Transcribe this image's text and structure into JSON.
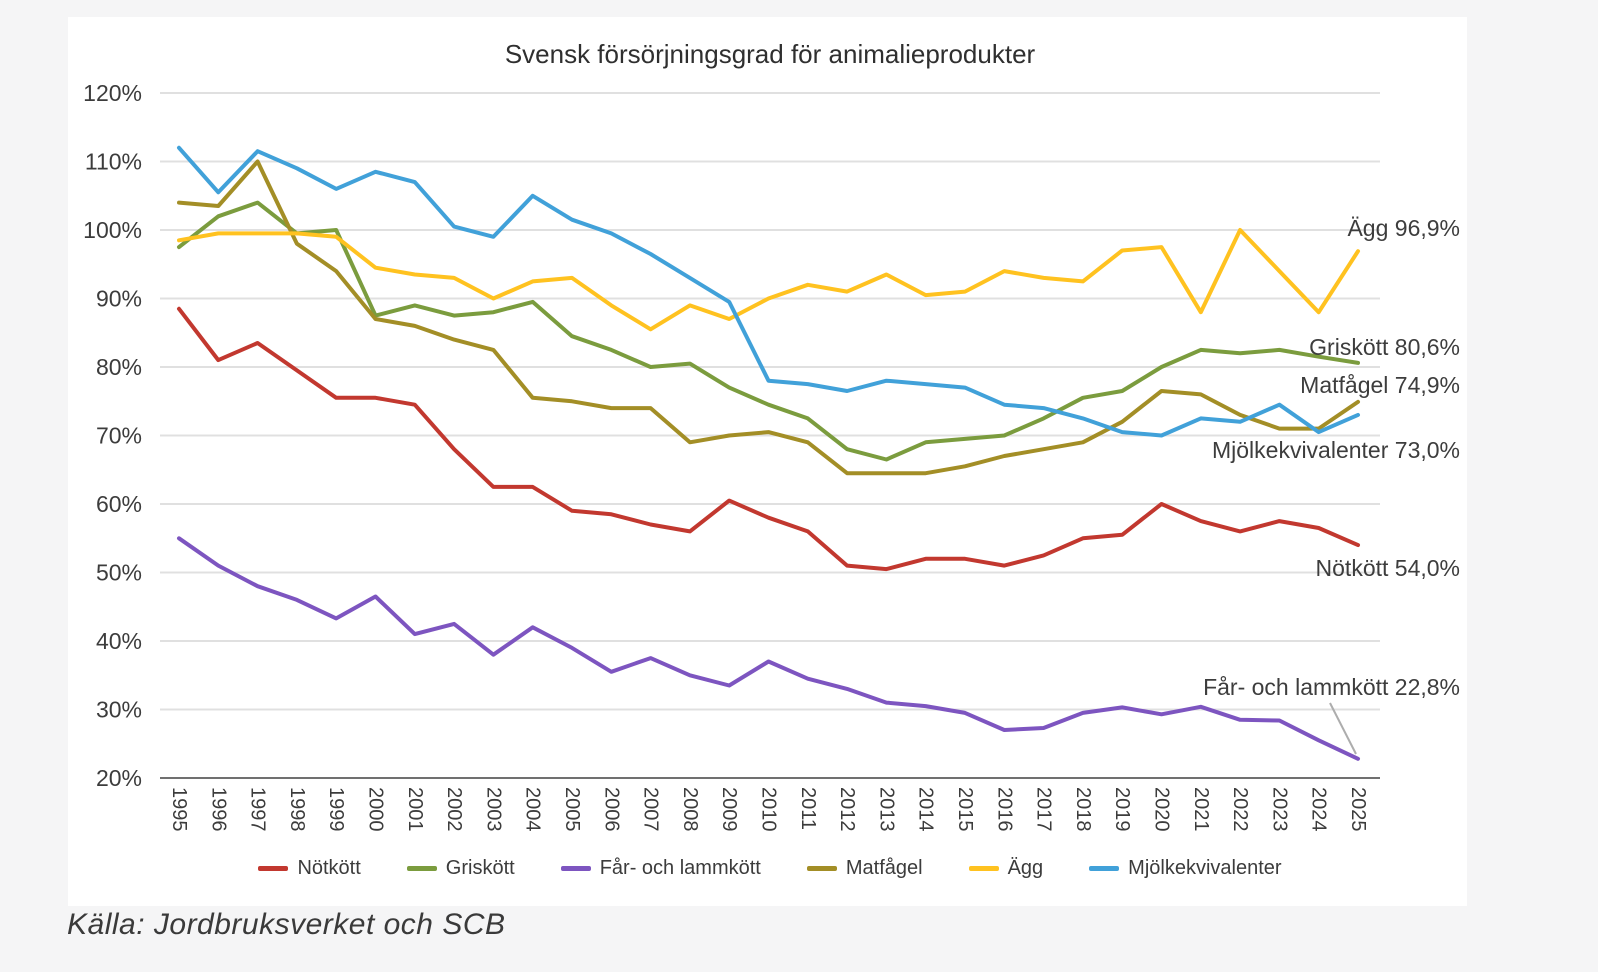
{
  "chart_data": {
    "type": "line",
    "title": "Svensk försörjningsgrad för animalieprodukter",
    "xlabel": "",
    "ylabel": "",
    "x": [
      1995,
      1996,
      1997,
      1998,
      1999,
      2000,
      2001,
      2002,
      2003,
      2004,
      2005,
      2006,
      2007,
      2008,
      2009,
      2010,
      2011,
      2012,
      2013,
      2014,
      2015,
      2016,
      2017,
      2018,
      2019,
      2020,
      2021,
      2022,
      2023,
      2024,
      2025
    ],
    "ylim": [
      20,
      120
    ],
    "y_tick_labels": [
      "120%",
      "110%",
      "100%",
      "90%",
      "80%",
      "70%",
      "60%",
      "50%",
      "40%",
      "30%",
      "20%"
    ],
    "grid": true,
    "legend_position": "bottom",
    "series": [
      {
        "name": "Nötkött",
        "color": "#C2382F",
        "end_label": "Nötkött 54,0%",
        "values": [
          88.5,
          81,
          83.5,
          79.5,
          75.5,
          75.5,
          74.5,
          68,
          62.5,
          62.5,
          59,
          58.5,
          57,
          56,
          60.5,
          58,
          56,
          51,
          50.5,
          52,
          52,
          51,
          52.5,
          55,
          55.5,
          60,
          57.5,
          56,
          57.5,
          56.5,
          54
        ]
      },
      {
        "name": "Griskött",
        "color": "#7B9C3E",
        "end_label": "Griskött 80,6%",
        "values": [
          97.5,
          102,
          104,
          99.5,
          100,
          87.5,
          89,
          87.5,
          88,
          89.5,
          84.5,
          82.5,
          80,
          80.5,
          77,
          74.5,
          72.5,
          68,
          66.5,
          69,
          69.5,
          70,
          72.5,
          75.5,
          76.5,
          80,
          82.5,
          82,
          82.5,
          81.5,
          80.6
        ]
      },
      {
        "name": "Får- och lammkött",
        "color": "#7D55C0",
        "end_label": "Får- och lammkött 22,8%",
        "values": [
          55,
          51,
          48,
          46,
          43.3,
          46.5,
          41,
          42.5,
          38,
          42,
          39,
          35.5,
          37.5,
          35,
          33.5,
          37,
          34.5,
          33,
          31,
          30.5,
          29.5,
          27,
          27.3,
          29.5,
          30.3,
          29.3,
          30.4,
          28.5,
          28.4,
          25.5,
          22.8
        ]
      },
      {
        "name": "Matfågel",
        "color": "#A38E26",
        "end_label": "Matfågel 74,9%",
        "values": [
          104,
          103.5,
          110,
          98,
          94,
          87,
          86,
          84,
          82.5,
          75.5,
          75,
          74,
          74,
          69,
          70,
          70.5,
          69,
          64.5,
          64.5,
          64.5,
          65.5,
          67,
          68,
          69,
          72,
          76.5,
          76,
          73,
          71,
          71,
          74.9
        ]
      },
      {
        "name": "Ägg",
        "color": "#FFC220",
        "end_label": "Ägg 96,9%",
        "values": [
          98.5,
          99.5,
          99.5,
          99.5,
          99,
          94.5,
          93.5,
          93,
          90,
          92.5,
          93,
          89,
          85.5,
          89,
          87,
          90,
          92,
          91,
          93.5,
          90.5,
          91,
          94,
          93,
          92.5,
          97,
          97.5,
          88,
          100,
          94,
          88,
          96.9
        ]
      },
      {
        "name": "Mjölkekvivalenter",
        "color": "#41A1D9",
        "end_label": "Mjölkekvivalenter 73,0%",
        "values": [
          112,
          105.5,
          111.5,
          109,
          106,
          108.5,
          107,
          100.5,
          99,
          105,
          101.5,
          99.5,
          96.5,
          93,
          89.5,
          78,
          77.5,
          76.5,
          78,
          77.5,
          77,
          74.5,
          74,
          72.5,
          70.5,
          70,
          72.5,
          72,
          74.5,
          70.5,
          73
        ]
      }
    ],
    "colors": {
      "gridline": "#e0e0e0",
      "axis_line": "#707070",
      "tick_text": "#3c3c3c",
      "leader_line": "#adadad",
      "panel_background": "#ffffff",
      "page_background": "#f5f5f6"
    }
  },
  "source": "Källa: Jordbruksverket och SCB"
}
